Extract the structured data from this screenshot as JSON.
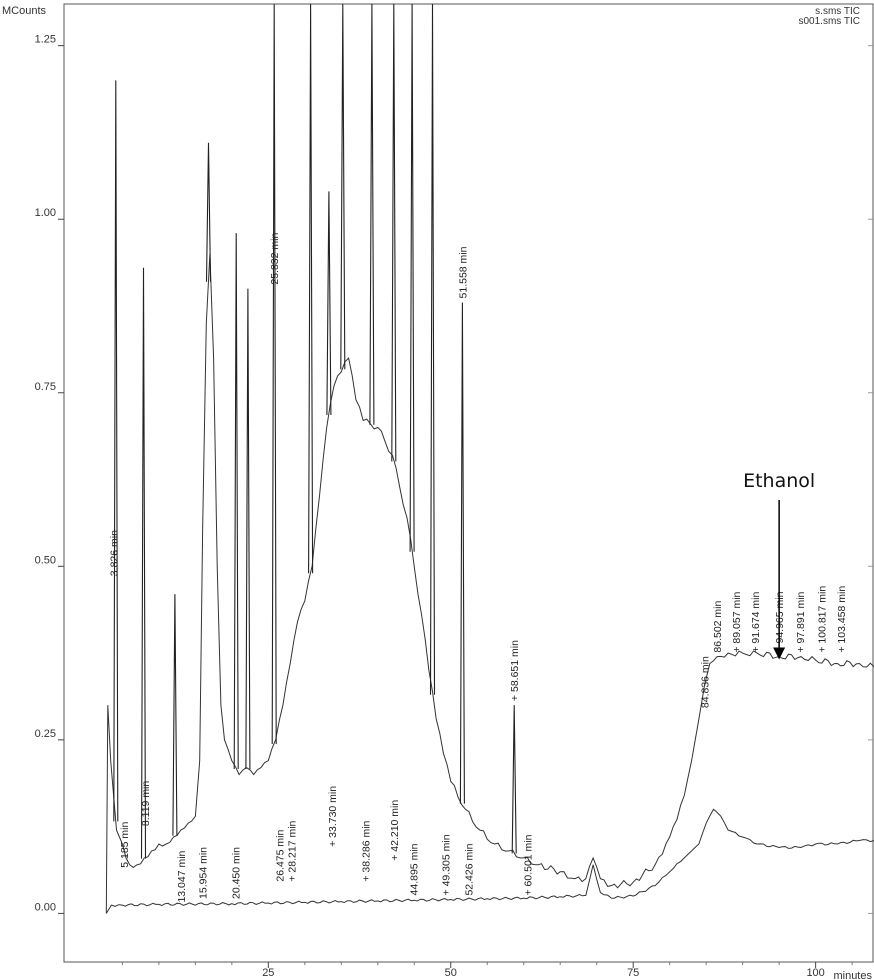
{
  "chart_data": {
    "type": "line",
    "ylabel": "MCounts",
    "xlabel": "minutes",
    "xlim": [
      -3,
      108
    ],
    "ylim": [
      -0.07,
      1.31
    ],
    "x_ticks": [
      25,
      50,
      75,
      100
    ],
    "y_ticks": [
      0.0,
      0.25,
      0.5,
      0.75,
      1.0,
      1.25
    ],
    "x_tick_labels": [
      "25",
      "50",
      "75",
      "100"
    ],
    "y_tick_labels": [
      "0.00",
      "0.25",
      "0.50",
      "0.75",
      "1.00",
      "1.25"
    ],
    "grid": false,
    "legend": [
      "s.sms TIC",
      "s001.sms TIC"
    ],
    "legend_position": "top-right",
    "series": [
      {
        "name": "s.sms TIC",
        "x": [
          2.8,
          3.0,
          3.4,
          3.8,
          4.2,
          5.0,
          5.5,
          6.0,
          7.0,
          8.0,
          9.0,
          10.0,
          11.0,
          12.0,
          13.0,
          14.0,
          15.0,
          15.6,
          16.0,
          16.5,
          17.0,
          17.5,
          18.0,
          18.5,
          19.0,
          20.0,
          21.0,
          22.0,
          23.0,
          24.0,
          25.0,
          26.0,
          27.0,
          28.0,
          29.0,
          30.0,
          31.0,
          32.0,
          33.0,
          34.0,
          35.0,
          36.0,
          37.0,
          38.0,
          40.0,
          42.0,
          44.0,
          46.0,
          47.0,
          48.0,
          49.0,
          50.0,
          52.0,
          54.0,
          56.0,
          58.0,
          60.0,
          62.0,
          65.0,
          67.0,
          68.5,
          69.5,
          70.5,
          72.0,
          75.0,
          78.0,
          80.0,
          82.0,
          83.0,
          84.0,
          84.8,
          85.5,
          86.5,
          88.0,
          90.0,
          92.0,
          95.0,
          98.0,
          100.0,
          103.0,
          106.0,
          108.0
        ],
        "y": [
          0.0,
          0.3,
          0.22,
          0.17,
          0.12,
          0.1,
          0.08,
          0.07,
          0.07,
          0.08,
          0.09,
          0.1,
          0.1,
          0.11,
          0.12,
          0.13,
          0.14,
          0.22,
          0.55,
          0.85,
          0.95,
          0.8,
          0.5,
          0.3,
          0.25,
          0.22,
          0.2,
          0.21,
          0.2,
          0.21,
          0.22,
          0.25,
          0.3,
          0.36,
          0.42,
          0.45,
          0.5,
          0.6,
          0.7,
          0.76,
          0.78,
          0.8,
          0.74,
          0.71,
          0.7,
          0.66,
          0.57,
          0.43,
          0.35,
          0.28,
          0.23,
          0.19,
          0.15,
          0.12,
          0.1,
          0.09,
          0.08,
          0.07,
          0.06,
          0.05,
          0.05,
          0.08,
          0.05,
          0.04,
          0.045,
          0.07,
          0.11,
          0.17,
          0.22,
          0.28,
          0.33,
          0.36,
          0.37,
          0.375,
          0.375,
          0.375,
          0.37,
          0.37,
          0.365,
          0.36,
          0.36,
          0.355
        ],
        "color": "#333333"
      },
      {
        "name": "s001.sms TIC",
        "x": [
          2.8,
          3.5,
          5.0,
          10.0,
          20.0,
          25.0,
          30.0,
          35.0,
          40.0,
          45.0,
          50.0,
          55.0,
          60.0,
          65.0,
          68.5,
          69.5,
          70.5,
          72.0,
          75.0,
          78.0,
          80.0,
          82.0,
          83.0,
          84.0,
          85.0,
          86.0,
          87.0,
          88.0,
          90.0,
          92.0,
          95.0,
          98.0,
          100.0,
          103.0,
          106.0,
          108.0
        ],
        "y": [
          0.0,
          0.012,
          0.012,
          0.013,
          0.014,
          0.015,
          0.016,
          0.017,
          0.018,
          0.019,
          0.02,
          0.021,
          0.022,
          0.024,
          0.026,
          0.07,
          0.03,
          0.022,
          0.025,
          0.04,
          0.06,
          0.08,
          0.09,
          0.1,
          0.13,
          0.15,
          0.14,
          0.12,
          0.11,
          0.1,
          0.095,
          0.095,
          0.1,
          0.1,
          0.105,
          0.105
        ],
        "color": "#333333"
      }
    ],
    "peaks": [
      {
        "x": 4.1,
        "y": 1.2
      },
      {
        "x": 7.9,
        "y": 0.93
      },
      {
        "x": 12.2,
        "y": 0.46
      },
      {
        "x": 16.8,
        "y": 1.11
      },
      {
        "x": 20.6,
        "y": 0.98
      },
      {
        "x": 22.2,
        "y": 0.9
      },
      {
        "x": 25.8,
        "y": 1.45
      },
      {
        "x": 30.8,
        "y": 1.45
      },
      {
        "x": 33.3,
        "y": 1.04
      },
      {
        "x": 35.2,
        "y": 1.45
      },
      {
        "x": 39.2,
        "y": 1.45
      },
      {
        "x": 42.2,
        "y": 1.45
      },
      {
        "x": 44.7,
        "y": 1.45
      },
      {
        "x": 47.5,
        "y": 1.45
      },
      {
        "x": 51.6,
        "y": 0.88
      },
      {
        "x": 58.7,
        "y": 0.3
      }
    ],
    "annotations": [
      {
        "text": "3.826 min",
        "x": 3.8,
        "y": 0.48
      },
      {
        "text": "5.185 min",
        "x": 5.2,
        "y": 0.06
      },
      {
        "text": "8.119 min",
        "x": 8.1,
        "y": 0.12
      },
      {
        "text": "13.047 min",
        "x": 13.0,
        "y": 0.01
      },
      {
        "text": "15.954 min",
        "x": 16.0,
        "y": 0.015
      },
      {
        "text": "20.450 min",
        "x": 20.5,
        "y": 0.015
      },
      {
        "text": "25.832 min",
        "x": 25.8,
        "y": 0.9
      },
      {
        "text": "26.475 min",
        "x": 26.5,
        "y": 0.04
      },
      {
        "text": "+ 28.217 min",
        "x": 28.2,
        "y": 0.04
      },
      {
        "text": "+ 33.730 min",
        "x": 33.7,
        "y": 0.09
      },
      {
        "text": "+ 38.286 min",
        "x": 38.3,
        "y": 0.04
      },
      {
        "text": "+ 42.210 min",
        "x": 42.2,
        "y": 0.07
      },
      {
        "text": "44.895 min",
        "x": 44.9,
        "y": 0.02
      },
      {
        "text": "+ 49.305 min",
        "x": 49.3,
        "y": 0.02
      },
      {
        "text": "52.426 min",
        "x": 52.4,
        "y": 0.02
      },
      {
        "text": "51.558 min",
        "x": 51.6,
        "y": 0.88
      },
      {
        "text": "+ 58.651 min",
        "x": 58.7,
        "y": 0.3
      },
      {
        "text": "+ 60.501 min",
        "x": 60.5,
        "y": 0.02
      },
      {
        "text": "84.836 min",
        "x": 84.8,
        "y": 0.29
      },
      {
        "text": "86.502 min",
        "x": 86.5,
        "y": 0.37
      },
      {
        "text": "+ 89.057 min",
        "x": 89.1,
        "y": 0.37
      },
      {
        "text": "+ 91.674 min",
        "x": 91.7,
        "y": 0.37
      },
      {
        "text": "+ 94.965 min",
        "x": 95.0,
        "y": 0.37
      },
      {
        "text": "+ 97.891 min",
        "x": 97.9,
        "y": 0.37
      },
      {
        "text": "+ 100.817 min",
        "x": 100.8,
        "y": 0.37
      },
      {
        "text": "+ 103.458 min",
        "x": 103.5,
        "y": 0.37
      }
    ],
    "callout": {
      "text": "Ethanol",
      "x": 95.0,
      "y": 0.36
    }
  }
}
